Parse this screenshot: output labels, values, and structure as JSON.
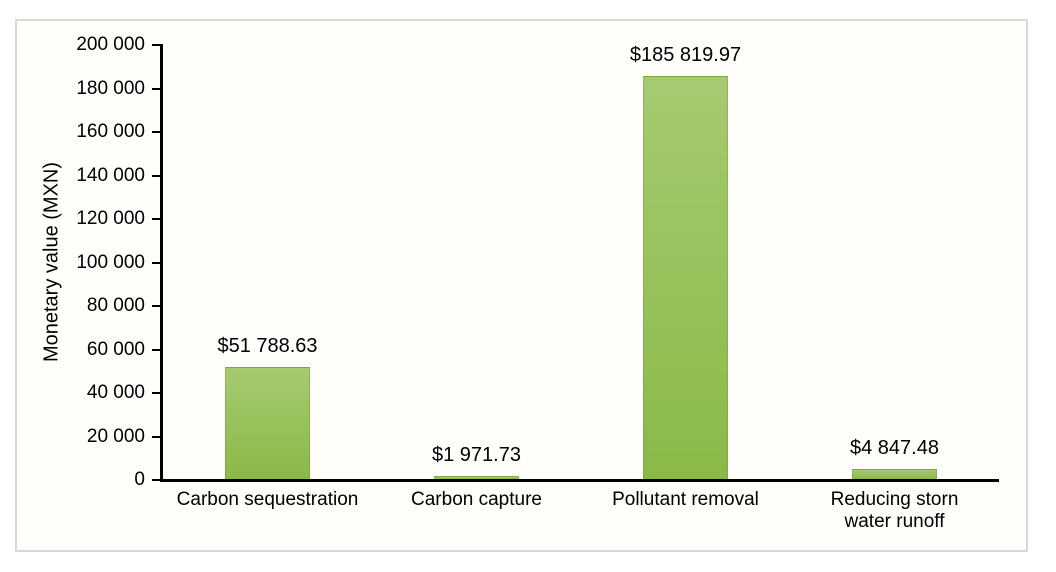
{
  "chart_data": {
    "type": "bar",
    "title": "",
    "xlabel": "",
    "ylabel": "Monetary value (MXN)",
    "categories": [
      "Carbon sequestration",
      "Carbon capture",
      "Pollutant removal",
      "Reducing storn\nwater runoff"
    ],
    "values": [
      51788.63,
      1971.73,
      185819.97,
      4847.48
    ],
    "data_labels": [
      "$51 788.63",
      "$1 971.73",
      "$185 819.97",
      "$4 847.48"
    ],
    "ylim": [
      0,
      200000
    ],
    "ytick_step": 20000,
    "ytick_labels": [
      "0",
      "20 000",
      "40 000",
      "60 000",
      "80 000",
      "100 000",
      "120 000",
      "140 000",
      "160 000",
      "180 000",
      "200 000"
    ],
    "grid": false,
    "legend": false,
    "colors": {
      "bar_gradient_top": "#a6ca70",
      "bar_gradient_bottom": "#8ab948",
      "axis": "#000000",
      "frame_border": "#d9d9d9",
      "text": "#000000",
      "background": "#ffffff"
    }
  }
}
